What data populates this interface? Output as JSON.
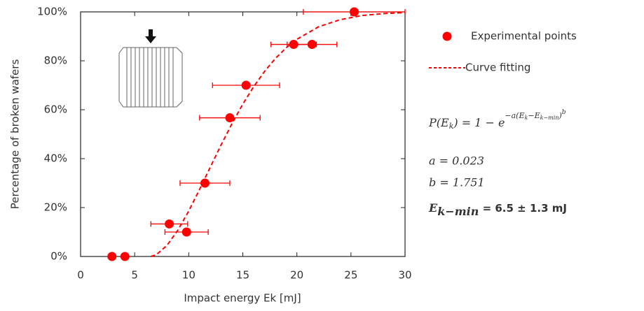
{
  "chart_data": {
    "type": "scatter",
    "x_label": "Impact energy Ek [mJ]",
    "y_label": "Percentage of broken wafers",
    "xlim": [
      0,
      30
    ],
    "ylim": [
      0,
      100
    ],
    "xticks": [
      0,
      5,
      10,
      15,
      20,
      25,
      30
    ],
    "yticks": [
      {
        "value": 0,
        "label": "0%"
      },
      {
        "value": 20,
        "label": "20%"
      },
      {
        "value": 40,
        "label": "40%"
      },
      {
        "value": 60,
        "label": "60%"
      },
      {
        "value": 80,
        "label": "80%"
      },
      {
        "value": 100,
        "label": "100%"
      }
    ],
    "series": [
      {
        "name": "Experimental points",
        "color": "#ff0000",
        "kind": "points",
        "x": [
          2.9,
          4.1,
          8.2,
          9.8,
          11.5,
          13.8,
          15.3,
          19.7,
          21.4,
          25.3
        ],
        "values": [
          0,
          0,
          13.3,
          10,
          30,
          56.7,
          70,
          86.7,
          86.7,
          100
        ],
        "xerr": [
          0,
          0,
          1.7,
          2.0,
          2.3,
          2.8,
          3.1,
          2.1,
          2.3,
          4.7
        ]
      },
      {
        "name": "Curve fitting",
        "color": "#ff0000",
        "kind": "line",
        "x": [
          6.5,
          7,
          8,
          9,
          10,
          11,
          12,
          13,
          14,
          15,
          16,
          17,
          18,
          19,
          20,
          22,
          24,
          26,
          28,
          30
        ],
        "values": [
          0,
          0.7,
          4.6,
          10.8,
          18.6,
          27.4,
          36.6,
          45.7,
          54.3,
          62.3,
          69.4,
          75.6,
          80.9,
          85.3,
          88.8,
          93.9,
          96.8,
          98.5,
          99.3,
          99.7
        ]
      }
    ],
    "annotations": {
      "formula": [
        "P(E",
        "k",
        ") = 1 − e",
        "−a(E",
        "k",
        "−E",
        "k−min",
        ")",
        "b"
      ],
      "a": "a = 0.023",
      "b": "b = 1.751",
      "ekmin": [
        "E",
        "k−min",
        " = 6.5 ± 1.3 mJ"
      ]
    }
  }
}
